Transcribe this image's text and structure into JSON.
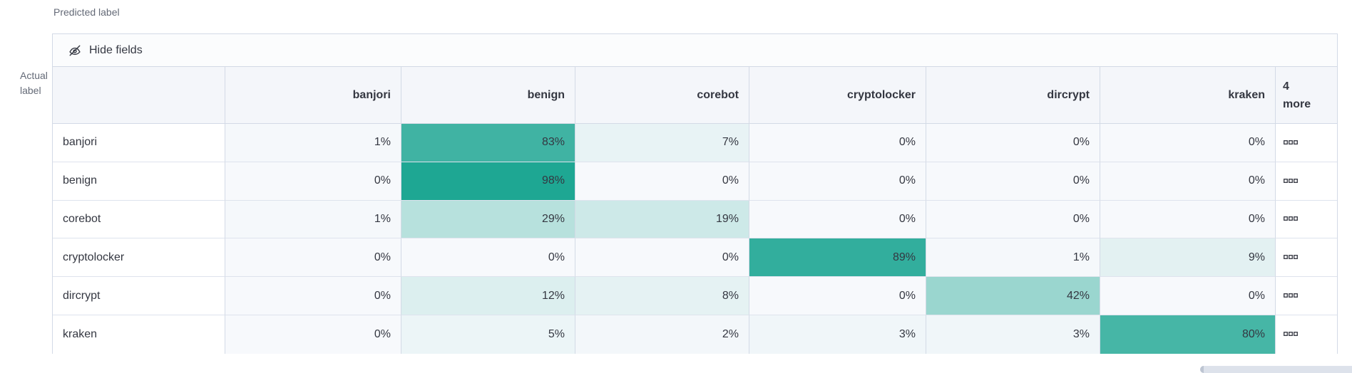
{
  "axis": {
    "predicted": "Predicted label",
    "actual_line1": "Actual",
    "actual_line2": "label"
  },
  "toolbar": {
    "hide_fields_label": "Hide fields",
    "hide_fields_icon": "eye-closed-icon"
  },
  "matrix": {
    "columns": [
      "banjori",
      "benign",
      "corebot",
      "cryptolocker",
      "dircrypt",
      "kraken"
    ],
    "more_column": {
      "count": "4",
      "word": "more",
      "cell_icon": "boxes-horizontal-icon"
    },
    "rows": [
      {
        "label": "banjori",
        "values": [
          1,
          83,
          7,
          0,
          0,
          0
        ]
      },
      {
        "label": "benign",
        "values": [
          0,
          98,
          0,
          0,
          0,
          0
        ]
      },
      {
        "label": "corebot",
        "values": [
          1,
          29,
          19,
          0,
          0,
          0
        ]
      },
      {
        "label": "cryptolocker",
        "values": [
          0,
          0,
          0,
          89,
          1,
          9
        ]
      },
      {
        "label": "dircrypt",
        "values": [
          0,
          12,
          8,
          0,
          42,
          0
        ]
      },
      {
        "label": "kraken",
        "values": [
          0,
          5,
          2,
          3,
          3,
          80
        ]
      }
    ],
    "value_suffix": "%"
  },
  "colors": {
    "heat_base": "#f7f9fc",
    "heat_target": "#1aa591",
    "header_bg": "#f4f6fa",
    "toolbar_bg": "#fbfcfd",
    "border": "#d3dae6",
    "text": "#343741",
    "axis_text": "#646a77"
  }
}
